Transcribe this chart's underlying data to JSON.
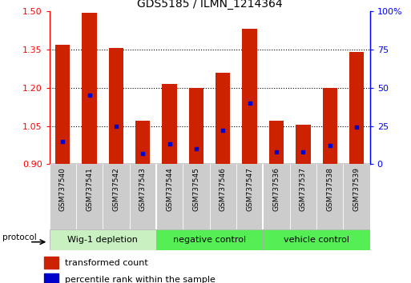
{
  "title": "GDS5185 / ILMN_1214364",
  "samples": [
    "GSM737540",
    "GSM737541",
    "GSM737542",
    "GSM737543",
    "GSM737544",
    "GSM737545",
    "GSM737546",
    "GSM737547",
    "GSM737536",
    "GSM737537",
    "GSM737538",
    "GSM737539"
  ],
  "transformed_count": [
    1.37,
    1.495,
    1.355,
    1.07,
    1.215,
    1.2,
    1.26,
    1.43,
    1.07,
    1.055,
    1.2,
    1.34
  ],
  "percentile_rank": [
    15,
    45,
    25,
    7,
    13,
    10,
    22,
    40,
    8,
    8,
    12,
    24
  ],
  "groups": [
    {
      "label": "Wig-1 depletion",
      "start": 0,
      "end": 4,
      "color": "#c8f0c0"
    },
    {
      "label": "negative control",
      "start": 4,
      "end": 8,
      "color": "#88ee88"
    },
    {
      "label": "vehicle control",
      "start": 8,
      "end": 12,
      "color": "#88ee88"
    }
  ],
  "ylim": [
    0.9,
    1.5
  ],
  "yticks_left": [
    0.9,
    1.05,
    1.2,
    1.35,
    1.5
  ],
  "yticks_right": [
    0,
    25,
    50,
    75,
    100
  ],
  "bar_color": "#cc2200",
  "dot_color": "#0000cc",
  "bar_width": 0.55,
  "baseline": 0.9,
  "sample_box_color": "#cccccc",
  "sample_box_alt_color": "#bbbbbb"
}
